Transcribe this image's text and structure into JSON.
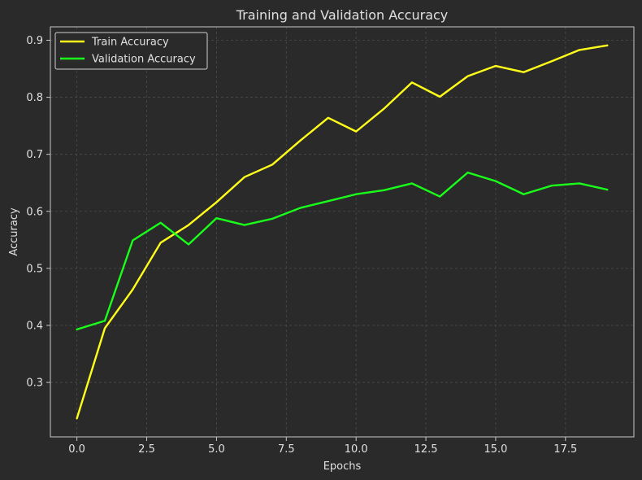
{
  "chart_data": {
    "type": "line",
    "title": "Training and Validation Accuracy",
    "xlabel": "Epochs",
    "ylabel": "Accuracy",
    "xlim": [
      -0.95,
      19.95
    ],
    "ylim": [
      0.2045,
      0.9235
    ],
    "xticks": [
      0,
      2.5,
      5,
      7.5,
      10,
      12.5,
      15,
      17.5
    ],
    "xtick_labels": [
      "0.0",
      "2.5",
      "5.0",
      "7.5",
      "10.0",
      "12.5",
      "15.0",
      "17.5"
    ],
    "yticks": [
      0.3,
      0.4,
      0.5,
      0.6,
      0.7,
      0.8,
      0.9
    ],
    "ytick_labels": [
      "0.3",
      "0.4",
      "0.5",
      "0.6",
      "0.7",
      "0.8",
      "0.9"
    ],
    "grid": true,
    "legend_position": "upper-left",
    "x": [
      0,
      1,
      2,
      3,
      4,
      5,
      6,
      7,
      8,
      9,
      10,
      11,
      12,
      13,
      14,
      15,
      16,
      17,
      18,
      19
    ],
    "series": [
      {
        "name": "Train Accuracy",
        "color": "#ffff1a",
        "values": [
          0.237,
          0.395,
          0.463,
          0.545,
          0.576,
          0.616,
          0.66,
          0.682,
          0.724,
          0.764,
          0.74,
          0.78,
          0.826,
          0.801,
          0.837,
          0.855,
          0.844,
          0.863,
          0.883,
          0.891
        ]
      },
      {
        "name": "Validation Accuracy",
        "color": "#1aff1a",
        "values": [
          0.393,
          0.408,
          0.549,
          0.58,
          0.542,
          0.588,
          0.576,
          0.587,
          0.606,
          0.618,
          0.63,
          0.637,
          0.649,
          0.626,
          0.668,
          0.653,
          0.63,
          0.645,
          0.649,
          0.638
        ]
      }
    ]
  },
  "colors": {
    "background": "#2a2a2a",
    "grid": "#4a4a4a",
    "axes": "#c8c8c8",
    "text": "#e0e0e0"
  }
}
